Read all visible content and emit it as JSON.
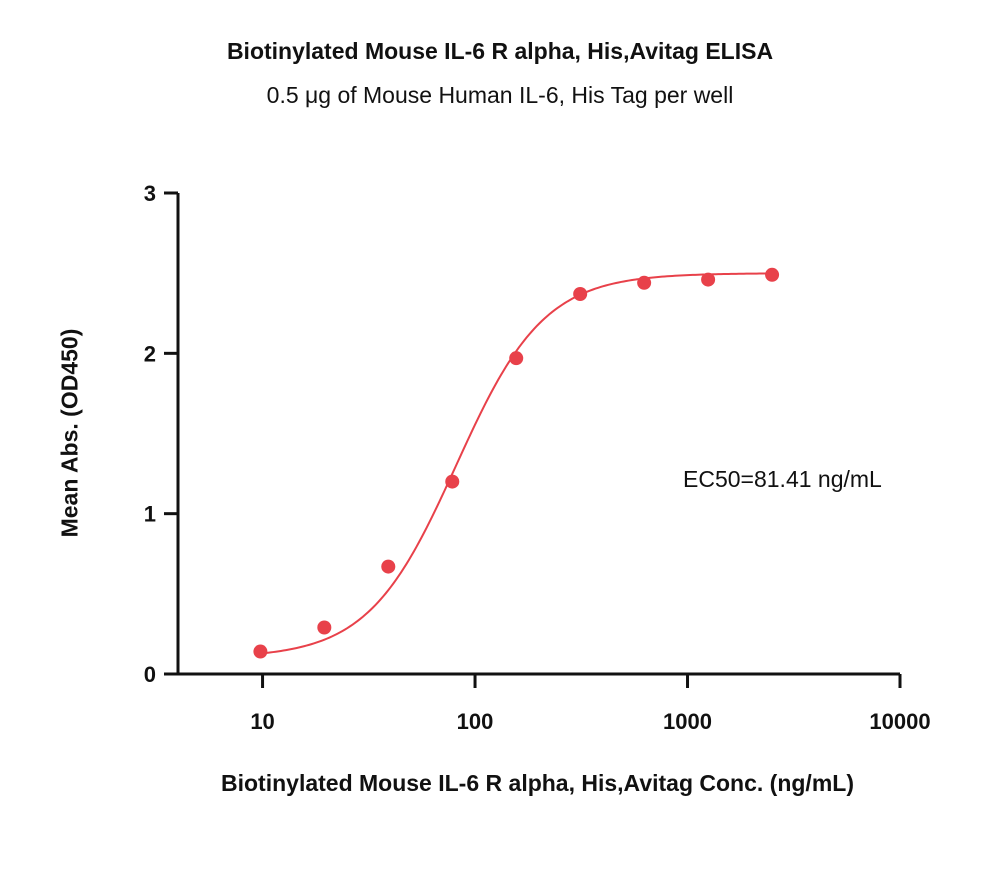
{
  "chart_data": {
    "type": "scatter",
    "title": "Biotinylated Mouse IL-6 R alpha, His,Avitag ELISA",
    "subtitle": "0.5 μg of Mouse Human IL-6, His Tag per well",
    "xlabel": "Biotinylated Mouse IL-6 R alpha, His,Avitag Conc. (ng/mL)",
    "ylabel": "Mean Abs. (OD450)",
    "xscale": "log",
    "xlim": [
      4,
      10000
    ],
    "ylim": [
      0,
      3
    ],
    "xticks": [
      10,
      100,
      1000,
      10000
    ],
    "xtick_labels": [
      "10",
      "100",
      "1000",
      "10000"
    ],
    "yticks": [
      0,
      1,
      2,
      3
    ],
    "ytick_labels": [
      "0",
      "1",
      "2",
      "3"
    ],
    "grid": false,
    "color": "#e8414a",
    "series": [
      {
        "x": [
          9.77,
          19.53,
          39.06,
          78.13,
          156.25,
          312.5,
          625,
          1250,
          2500
        ],
        "y": [
          0.14,
          0.29,
          0.67,
          1.2,
          1.97,
          2.37,
          2.44,
          2.46,
          2.49
        ]
      }
    ],
    "fit": {
      "model": "4PL",
      "bottom": 0.1,
      "top": 2.5,
      "ec50": 81.41,
      "hill": 2.1
    },
    "annotation": "EC50=81.41 ng/mL"
  }
}
